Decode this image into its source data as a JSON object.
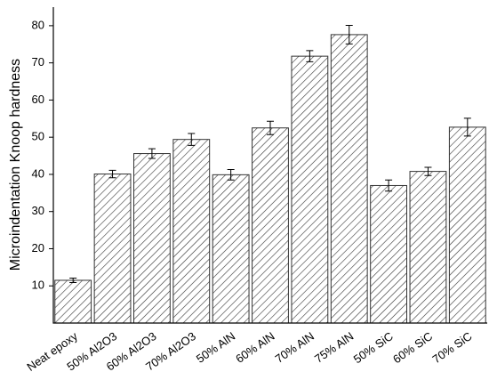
{
  "chart_data": {
    "type": "bar",
    "y_label": "Microindentation Knoop hardness",
    "categories": [
      "Neat epoxy",
      "50% Al2O3",
      "60% Al2O3",
      "70% Al2O3",
      "50% AlN",
      "60% AlN",
      "70% AlN",
      "75% AlN",
      "50% SiC",
      "60% SiC",
      "70% SiC"
    ],
    "values": [
      11.5,
      40.1,
      45.6,
      49.4,
      39.9,
      52.5,
      71.8,
      77.6,
      37.0,
      40.8,
      52.7
    ],
    "errors": [
      0.6,
      1.0,
      1.3,
      1.6,
      1.4,
      1.8,
      1.5,
      2.5,
      1.5,
      1.1,
      2.4
    ],
    "color": "#333333",
    "ylim": [
      0,
      85
    ],
    "yticks": [
      10,
      20,
      30,
      40,
      50,
      60,
      70,
      80
    ]
  }
}
